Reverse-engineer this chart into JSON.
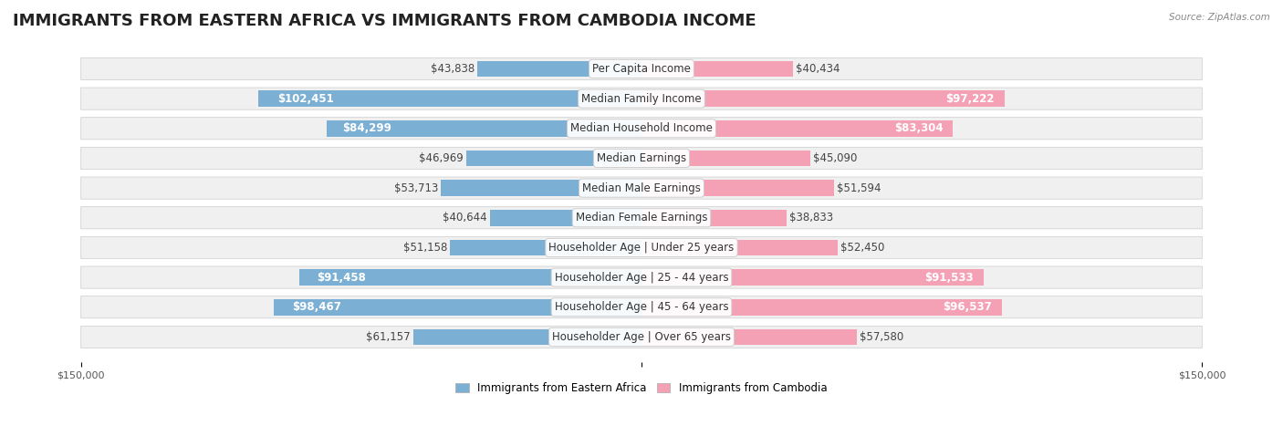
{
  "title": "IMMIGRANTS FROM EASTERN AFRICA VS IMMIGRANTS FROM CAMBODIA INCOME",
  "source": "Source: ZipAtlas.com",
  "categories": [
    "Per Capita Income",
    "Median Family Income",
    "Median Household Income",
    "Median Earnings",
    "Median Male Earnings",
    "Median Female Earnings",
    "Householder Age | Under 25 years",
    "Householder Age | 25 - 44 years",
    "Householder Age | 45 - 64 years",
    "Householder Age | Over 65 years"
  ],
  "left_values": [
    43838,
    102451,
    84299,
    46969,
    53713,
    40644,
    51158,
    91458,
    98467,
    61157
  ],
  "right_values": [
    40434,
    97222,
    83304,
    45090,
    51594,
    38833,
    52450,
    91533,
    96537,
    57580
  ],
  "left_labels": [
    "$43,838",
    "$102,451",
    "$84,299",
    "$46,969",
    "$53,713",
    "$40,644",
    "$51,158",
    "$91,458",
    "$98,467",
    "$61,157"
  ],
  "right_labels": [
    "$40,434",
    "$97,222",
    "$83,304",
    "$45,090",
    "$51,594",
    "$38,833",
    "$52,450",
    "$91,533",
    "$96,537",
    "$57,580"
  ],
  "left_color": "#7bafd4",
  "right_color": "#f4a0b5",
  "left_strong_color": "#5b8fc4",
  "right_strong_color": "#f07090",
  "max_value": 150000,
  "legend_left": "Immigrants from Eastern Africa",
  "legend_right": "Immigrants from Cambodia",
  "row_bg_color": "#f0f0f0",
  "title_fontsize": 13,
  "label_fontsize": 8.5,
  "category_fontsize": 8.5,
  "axis_label_fontsize": 8,
  "background_color": "#ffffff",
  "strong_threshold": 70000
}
